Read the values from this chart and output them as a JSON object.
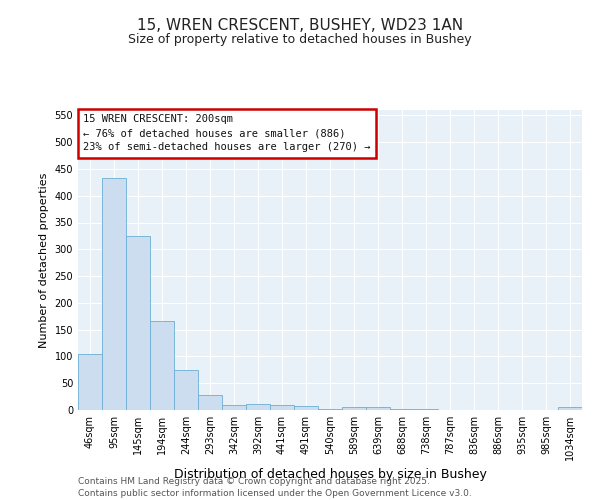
{
  "title": "15, WREN CRESCENT, BUSHEY, WD23 1AN",
  "subtitle": "Size of property relative to detached houses in Bushey",
  "xlabel": "Distribution of detached houses by size in Bushey",
  "ylabel": "Number of detached properties",
  "categories": [
    "46sqm",
    "95sqm",
    "145sqm",
    "194sqm",
    "244sqm",
    "293sqm",
    "342sqm",
    "392sqm",
    "441sqm",
    "491sqm",
    "540sqm",
    "589sqm",
    "639sqm",
    "688sqm",
    "738sqm",
    "787sqm",
    "836sqm",
    "886sqm",
    "935sqm",
    "985sqm",
    "1034sqm"
  ],
  "values": [
    105,
    433,
    325,
    167,
    75,
    28,
    10,
    12,
    10,
    7,
    1,
    5,
    5,
    1,
    1,
    0,
    0,
    0,
    0,
    0,
    5
  ],
  "bar_color": "#ccddf0",
  "bar_edge_color": "#6baed6",
  "bg_color": "#e8f0f8",
  "annotation_line1": "15 WREN CRESCENT: 200sqm",
  "annotation_line2": "← 76% of detached houses are smaller (886)",
  "annotation_line3": "23% of semi-detached houses are larger (270) →",
  "annotation_box_color": "#ffffff",
  "annotation_border_color": "#cc0000",
  "ylim": [
    0,
    560
  ],
  "yticks": [
    0,
    50,
    100,
    150,
    200,
    250,
    300,
    350,
    400,
    450,
    500,
    550
  ],
  "footer_line1": "Contains HM Land Registry data © Crown copyright and database right 2025.",
  "footer_line2": "Contains public sector information licensed under the Open Government Licence v3.0.",
  "grid_color": "#ffffff",
  "title_fontsize": 11,
  "subtitle_fontsize": 9,
  "ylabel_fontsize": 8,
  "xlabel_fontsize": 9,
  "tick_fontsize": 7,
  "footer_fontsize": 6.5
}
